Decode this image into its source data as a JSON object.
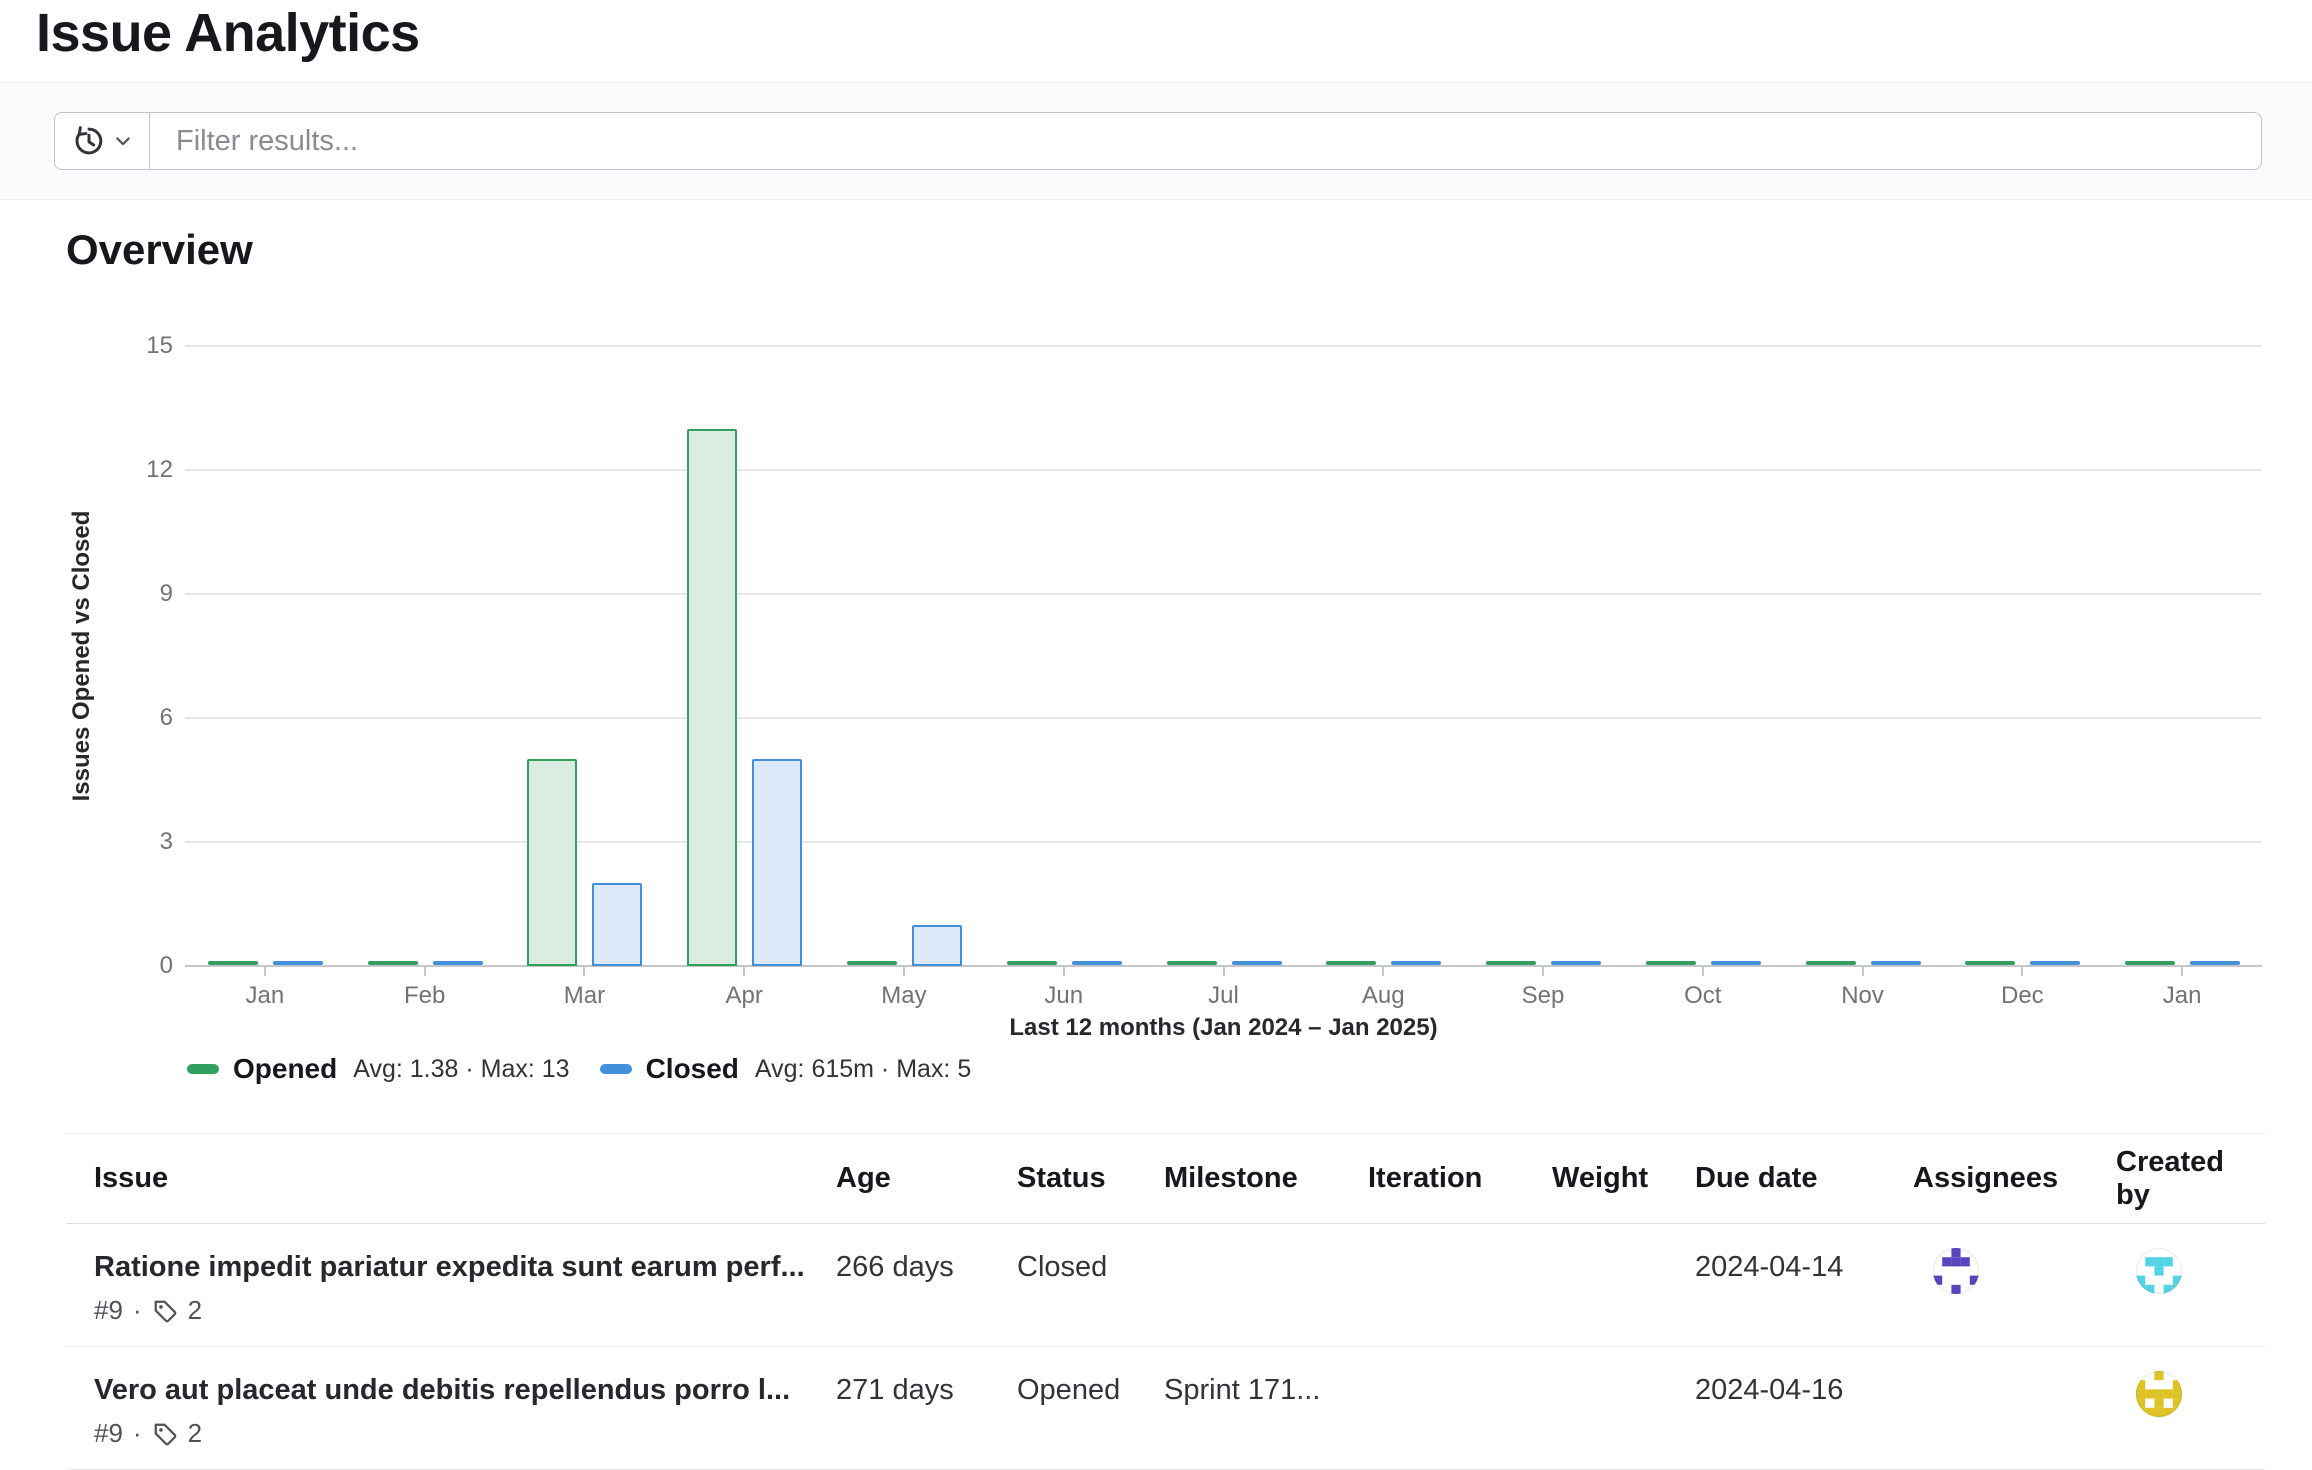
{
  "page": {
    "title": "Issue Analytics"
  },
  "filter": {
    "placeholder": "Filter results...",
    "history_button_icon": "history-icon"
  },
  "overview": {
    "heading": "Overview"
  },
  "chart_data": {
    "type": "bar",
    "title": "",
    "categories": [
      "Jan",
      "Feb",
      "Mar",
      "Apr",
      "May",
      "Jun",
      "Jul",
      "Aug",
      "Sep",
      "Oct",
      "Nov",
      "Dec",
      "Jan"
    ],
    "series": [
      {
        "name": "Opened",
        "values": [
          0,
          0,
          5,
          13,
          0,
          0,
          0,
          0,
          0,
          0,
          0,
          0,
          0
        ],
        "stats": "Avg: 1.38 · Max: 13",
        "stroke": "#31a05f",
        "fill": "#ddece3"
      },
      {
        "name": "Closed",
        "values": [
          0,
          0,
          2,
          5,
          1,
          0,
          0,
          0,
          0,
          0,
          0,
          0,
          0
        ],
        "stats": "Avg: 615m · Max: 5",
        "stroke": "#428fdc",
        "fill": "#dde8f8"
      }
    ],
    "ylabel": "Issues Opened vs Closed",
    "xlabel": "Last 12 months (Jan 2024 – Jan 2025)",
    "ylim": [
      0,
      15
    ],
    "yticks": [
      0,
      3,
      6,
      9,
      12,
      15
    ],
    "grid": true,
    "legend_position": "bottom-left"
  },
  "table": {
    "headers": [
      "Issue",
      "Age",
      "Status",
      "Milestone",
      "Iteration",
      "Weight",
      "Due date",
      "Assignees",
      "Created by"
    ],
    "meta_separator": "·",
    "rows": [
      {
        "title": "Ratione impedit pariatur expedita sunt earum perf...",
        "ref": "#9",
        "label_count": "2",
        "age": "266 days",
        "status": "Closed",
        "milestone": "",
        "iteration": "",
        "weight": "",
        "due_date": "2024-04-14",
        "assignee_avatar_color": "#5846be",
        "created_by_avatar_color": "#52d4e6"
      },
      {
        "title": "Vero aut placeat unde debitis repellendus porro l...",
        "ref": "#9",
        "label_count": "2",
        "age": "271 days",
        "status": "Opened",
        "milestone": "Sprint 171...",
        "iteration": "",
        "weight": "",
        "due_date": "2024-04-16",
        "assignee_avatar_color": "",
        "created_by_avatar_color": "#dec327"
      }
    ]
  }
}
